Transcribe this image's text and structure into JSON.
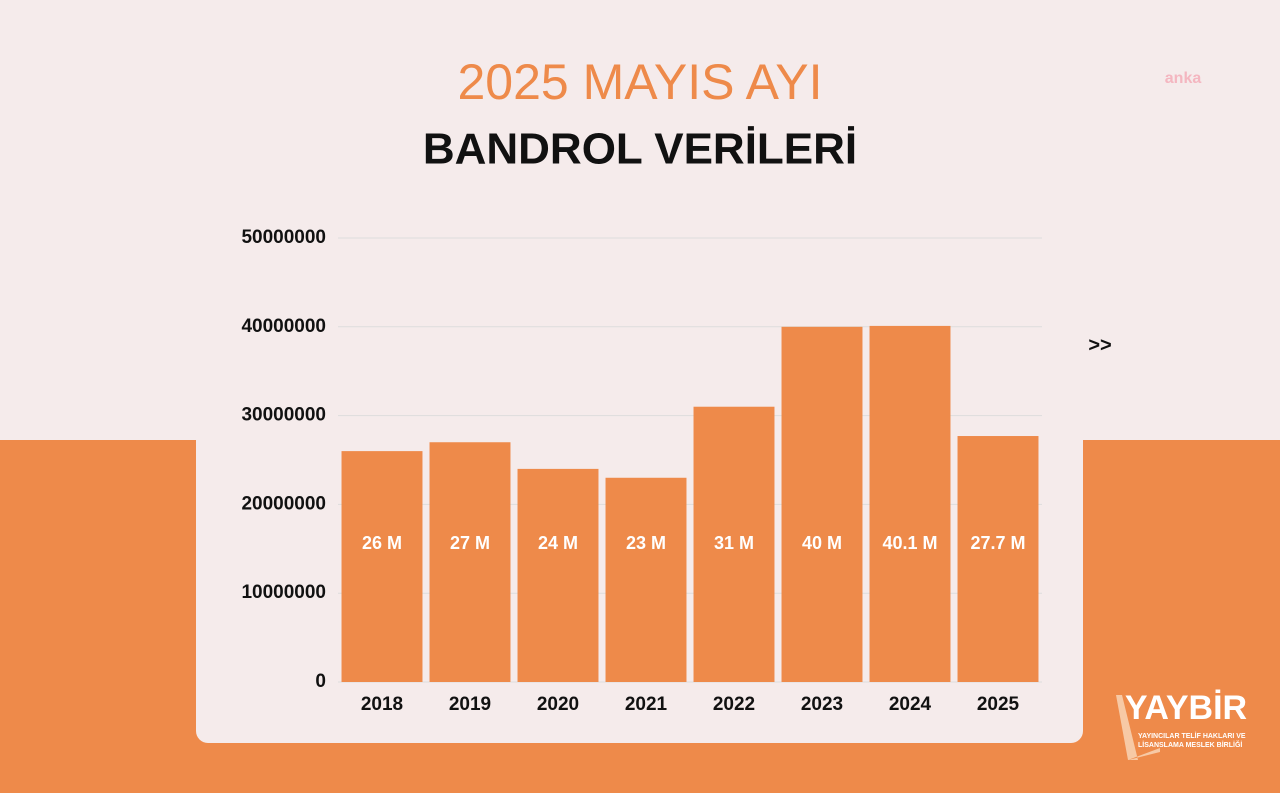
{
  "chart_data": {
    "type": "bar",
    "title": "2025 MAYIS AYI",
    "subtitle": "BANDROL VERİLERİ",
    "categories": [
      "2018",
      "2019",
      "2020",
      "2021",
      "2022",
      "2023",
      "2024",
      "2025"
    ],
    "values": [
      26000000,
      27000000,
      24000000,
      23000000,
      31000000,
      40000000,
      40100000,
      27700000
    ],
    "value_labels": [
      "26 M",
      "27 M",
      "24 M",
      "23 M",
      "31 M",
      "40 M",
      "40.1 M",
      "27.7 M"
    ],
    "color": "#ee8a4a",
    "ylim": [
      0,
      50000000
    ],
    "yticks": [
      0,
      10000000,
      20000000,
      30000000,
      40000000,
      50000000
    ],
    "grid": true
  },
  "next_arrow": ">>",
  "watermark": "anka",
  "logo": {
    "name": "YAYBİR",
    "subtitle_1": "YAYINCILAR TELİF HAKLARI VE",
    "subtitle_2": "LİSANSLAMA MESLEK BİRLİĞİ"
  }
}
